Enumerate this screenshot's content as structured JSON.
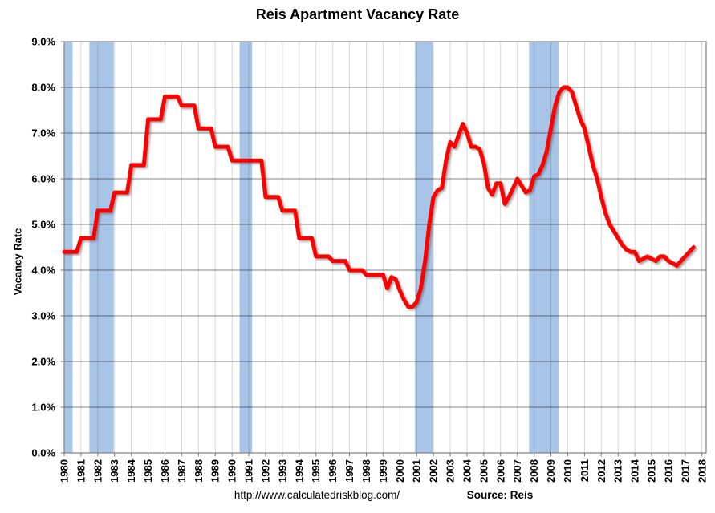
{
  "title": "Reis Apartment Vacancy Rate",
  "footer": {
    "url": "http://www.calculatedriskblog.com/",
    "source": "Source: Reis"
  },
  "colors": {
    "line": "#ff0000",
    "recession_band": "#a8c5e8",
    "h_grid": "rgba(0,0,0,0.47)",
    "v_grid": "rgba(0,0,0,0.16)",
    "frame": "#808080",
    "tick": "#808080"
  },
  "chart_data": {
    "type": "line",
    "title": "Reis Apartment Vacancy Rate",
    "xlabel": "",
    "ylabel": "Vacancy Rate",
    "grid": true,
    "legend_position": "none",
    "ylim": [
      0,
      9
    ],
    "xlim": [
      1980,
      2018.25
    ],
    "y_tick_labels": [
      "0.0%",
      "1.0%",
      "2.0%",
      "3.0%",
      "4.0%",
      "5.0%",
      "6.0%",
      "7.0%",
      "8.0%",
      "9.0%"
    ],
    "x_tick_years": [
      1980,
      1981,
      1982,
      1983,
      1984,
      1985,
      1986,
      1987,
      1988,
      1989,
      1990,
      1991,
      1992,
      1993,
      1994,
      1995,
      1996,
      1997,
      1998,
      1999,
      2000,
      2001,
      2002,
      2003,
      2004,
      2005,
      2006,
      2007,
      2008,
      2009,
      2010,
      2011,
      2012,
      2013,
      2014,
      2015,
      2016,
      2017,
      2018
    ],
    "recession_bands": {
      "description": "shaded recessions",
      "intervals": [
        [
          1980.0,
          1980.5
        ],
        [
          1981.5,
          1982.95
        ],
        [
          1990.45,
          1991.2
        ],
        [
          2000.9,
          2001.95
        ],
        [
          2007.7,
          2009.45
        ]
      ]
    },
    "series": [
      {
        "name": "Apartment Vacancy Rate",
        "x_start": 1980,
        "points_per_year": 4,
        "note": "annual rate before 1999 (value repeated per quarter), quarterly starting 1999, ends 2017 Q3",
        "values": [
          4.4,
          4.4,
          4.4,
          4.4,
          4.7,
          4.7,
          4.7,
          4.7,
          5.3,
          5.3,
          5.3,
          5.3,
          5.7,
          5.7,
          5.7,
          5.7,
          6.3,
          6.3,
          6.3,
          6.3,
          7.3,
          7.3,
          7.3,
          7.3,
          7.8,
          7.8,
          7.8,
          7.8,
          7.6,
          7.6,
          7.6,
          7.6,
          7.1,
          7.1,
          7.1,
          7.1,
          6.7,
          6.7,
          6.7,
          6.7,
          6.4,
          6.4,
          6.4,
          6.4,
          6.4,
          6.4,
          6.4,
          6.4,
          5.6,
          5.6,
          5.6,
          5.6,
          5.3,
          5.3,
          5.3,
          5.3,
          4.7,
          4.7,
          4.7,
          4.7,
          4.3,
          4.3,
          4.3,
          4.3,
          4.2,
          4.2,
          4.2,
          4.2,
          4.0,
          4.0,
          4.0,
          4.0,
          3.9,
          3.9,
          3.9,
          3.9,
          3.9,
          3.6,
          3.85,
          3.8,
          3.55,
          3.35,
          3.2,
          3.2,
          3.3,
          3.6,
          4.2,
          5.0,
          5.6,
          5.75,
          5.8,
          6.4,
          6.8,
          6.7,
          6.95,
          7.2,
          7.0,
          6.7,
          6.7,
          6.65,
          6.35,
          5.8,
          5.65,
          5.9,
          5.9,
          5.45,
          5.6,
          5.8,
          6.0,
          5.85,
          5.7,
          5.75,
          6.05,
          6.1,
          6.3,
          6.6,
          7.1,
          7.6,
          7.9,
          8.0,
          8.0,
          7.9,
          7.6,
          7.3,
          7.1,
          6.7,
          6.3,
          6.0,
          5.6,
          5.25,
          5.0,
          4.85,
          4.7,
          4.55,
          4.45,
          4.4,
          4.4,
          4.2,
          4.25,
          4.3,
          4.25,
          4.2,
          4.3,
          4.3,
          4.2,
          4.15,
          4.1,
          4.2,
          4.3,
          4.4,
          4.5
        ]
      }
    ]
  }
}
